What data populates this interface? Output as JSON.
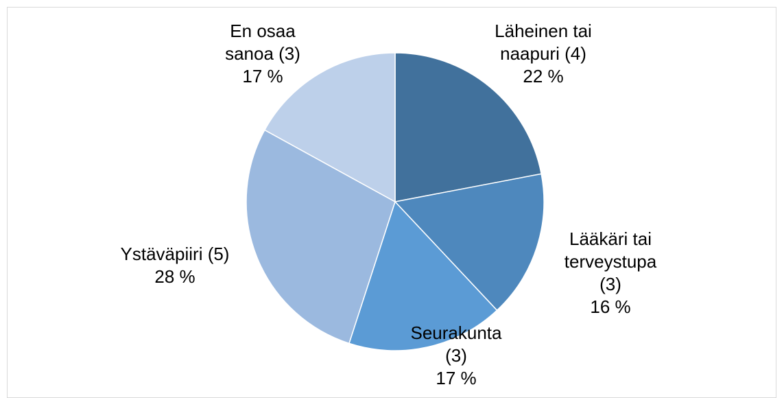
{
  "chart_data": {
    "type": "pie",
    "categories": [
      "Läheinen tai naapuri (4)",
      "Lääkäri tai terveystupa (3)",
      "Seurakunta (3)",
      "Ystäväpiiri (5)",
      "En osaa sanoa (3)"
    ],
    "values": [
      22,
      16,
      17,
      28,
      17
    ],
    "value_labels": [
      "22 %",
      "16 %",
      "17 %",
      "28 %",
      "17 %"
    ],
    "colors": [
      "#41719c",
      "#4e88bd",
      "#5b9bd5",
      "#9bb9df",
      "#bdd0ea"
    ]
  }
}
